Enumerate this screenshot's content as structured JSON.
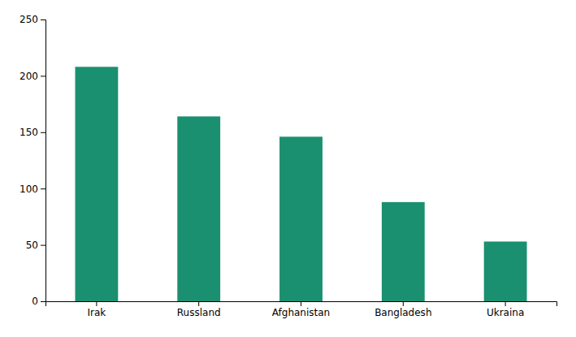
{
  "chart_data": {
    "type": "bar",
    "categories": [
      "Irak",
      "Russland",
      "Afghanistan",
      "Bangladesh",
      "Ukraina"
    ],
    "values": [
      208,
      164,
      146,
      88,
      53
    ],
    "color": "#1a9070",
    "ylim": [
      0,
      250
    ],
    "yticks": [
      0,
      50,
      100,
      150,
      200,
      250
    ],
    "grid": false
  }
}
